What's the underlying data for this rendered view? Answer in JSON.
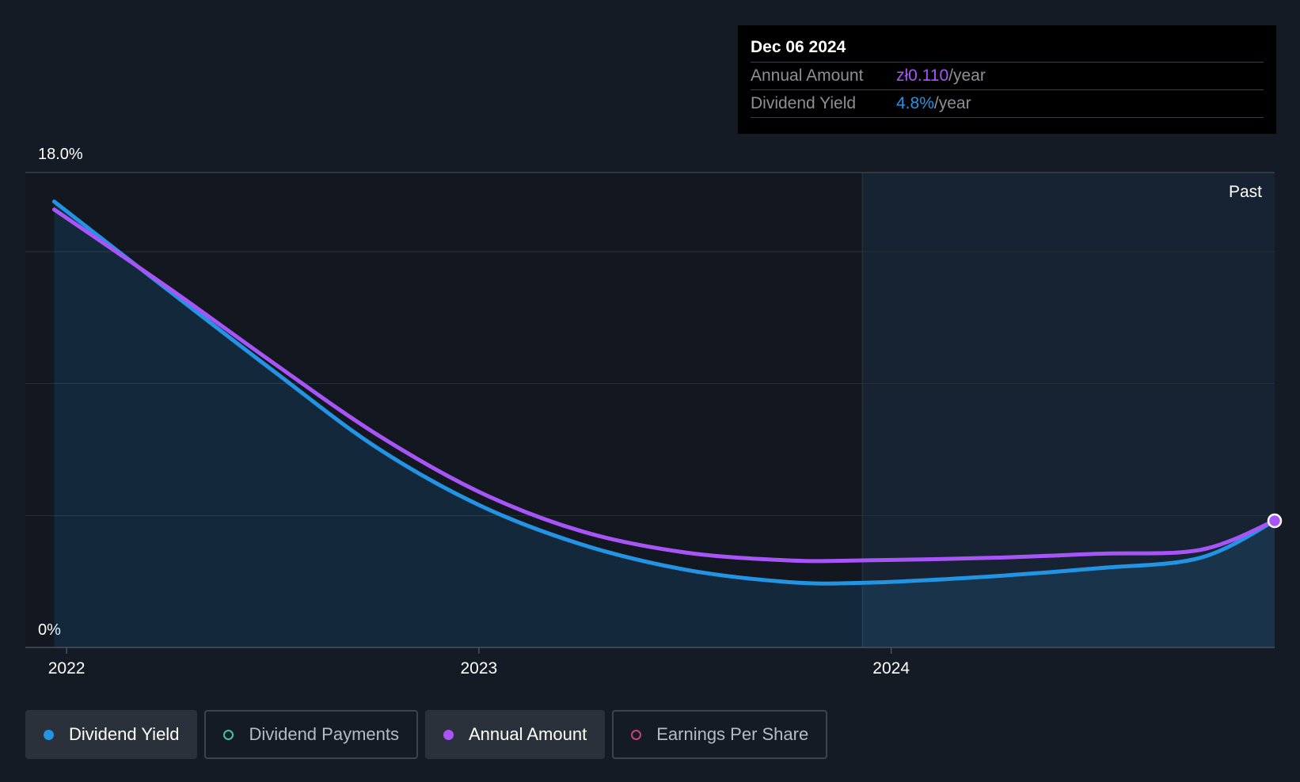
{
  "chart_data": {
    "type": "line",
    "y_axis": {
      "min": 0,
      "max": 18,
      "top_label": "18.0%",
      "bottom_label": "0%"
    },
    "x_ticks": [
      {
        "label": "2022",
        "t": 2022.0
      },
      {
        "label": "2023",
        "t": 2023.0
      },
      {
        "label": "2024",
        "t": 2024.0
      }
    ],
    "x_range": [
      2021.9,
      2024.93
    ],
    "past_label": "Past",
    "past_start": 2023.93,
    "series": [
      {
        "name": "Dividend Yield",
        "color": "#2394e3",
        "area": true,
        "points": [
          [
            2021.97,
            16.9
          ],
          [
            2022.25,
            13.5
          ],
          [
            2022.5,
            10.5
          ],
          [
            2022.75,
            7.6
          ],
          [
            2023.0,
            5.4
          ],
          [
            2023.25,
            3.9
          ],
          [
            2023.5,
            2.95
          ],
          [
            2023.75,
            2.48
          ],
          [
            2023.93,
            2.45
          ],
          [
            2024.2,
            2.65
          ],
          [
            2024.5,
            3.0
          ],
          [
            2024.75,
            3.4
          ],
          [
            2024.93,
            4.8
          ]
        ]
      },
      {
        "name": "Annual Amount",
        "color": "#a855f7",
        "area": false,
        "points": [
          [
            2021.97,
            16.6
          ],
          [
            2022.25,
            13.6
          ],
          [
            2022.5,
            10.8
          ],
          [
            2022.75,
            8.1
          ],
          [
            2023.0,
            5.9
          ],
          [
            2023.25,
            4.4
          ],
          [
            2023.5,
            3.6
          ],
          [
            2023.75,
            3.3
          ],
          [
            2023.93,
            3.3
          ],
          [
            2024.25,
            3.4
          ],
          [
            2024.5,
            3.55
          ],
          [
            2024.75,
            3.7
          ],
          [
            2024.93,
            4.8
          ]
        ]
      }
    ]
  },
  "tooltip": {
    "date": "Dec 06 2024",
    "rows": [
      {
        "label": "Annual Amount",
        "value": "zł0.110",
        "unit": "/year"
      },
      {
        "label": "Dividend Yield",
        "value": "4.8%",
        "unit": "/year"
      }
    ]
  },
  "legend": [
    {
      "label": "Dividend Yield",
      "color": "#2394e3",
      "active": true,
      "filled": true
    },
    {
      "label": "Dividend Payments",
      "color": "#3ec3b2",
      "active": false,
      "filled": false
    },
    {
      "label": "Annual Amount",
      "color": "#a855f7",
      "active": true,
      "filled": true
    },
    {
      "label": "Earnings Per Share",
      "color": "#c8417a",
      "active": false,
      "filled": false
    }
  ]
}
